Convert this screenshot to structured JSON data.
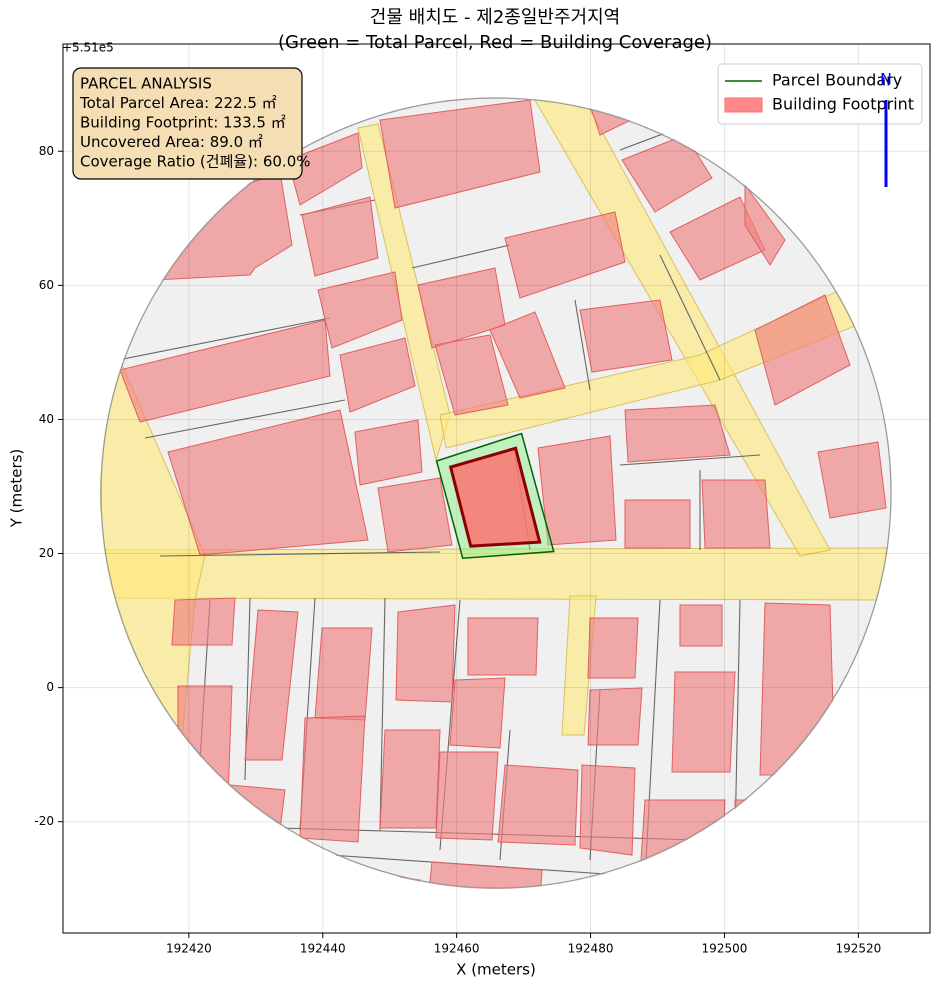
{
  "chart_data": {
    "type": "polygon",
    "title": "건물 배치도 - 제2종일반주거지역",
    "subtitle": "(Green = Total Parcel, Red = Building Coverage)",
    "x_label": "X (meters)",
    "y_label": "Y (meters)",
    "y_offset_label": "+5.51e5",
    "xlim": [
      192401.2,
      192530.7
    ],
    "ylim": [
      -36.6,
      96.0
    ],
    "xticks": [
      192420,
      192440,
      192460,
      192480,
      192500,
      192520
    ],
    "yticks": [
      -20,
      0,
      20,
      40,
      60,
      80
    ],
    "grid": true,
    "legend": "upper right",
    "series": [
      {
        "name": "Parcel Boundary",
        "color": "#006400",
        "fill": "#90ee90",
        "x": [
          192457.0,
          192469.7,
          192474.5,
          192460.9
        ],
        "y": [
          33.8,
          37.9,
          20.3,
          19.3
        ]
      },
      {
        "name": "Building Footprint",
        "color": "#8b0000",
        "fill": "#ff6b6b",
        "x": [
          192459.1,
          192468.8,
          192472.4,
          192462.1
        ],
        "y": [
          32.9,
          35.7,
          21.7,
          21.1
        ]
      }
    ],
    "annotation": [
      "PARCEL ANALYSIS",
      "Total Parcel Area: 222.5 ㎡",
      "Building Footprint: 133.5 ㎡",
      "Uncovered Area: 89.0 ㎡",
      "Coverage Ratio (건폐율): 60.0%"
    ],
    "north_label": "N"
  }
}
